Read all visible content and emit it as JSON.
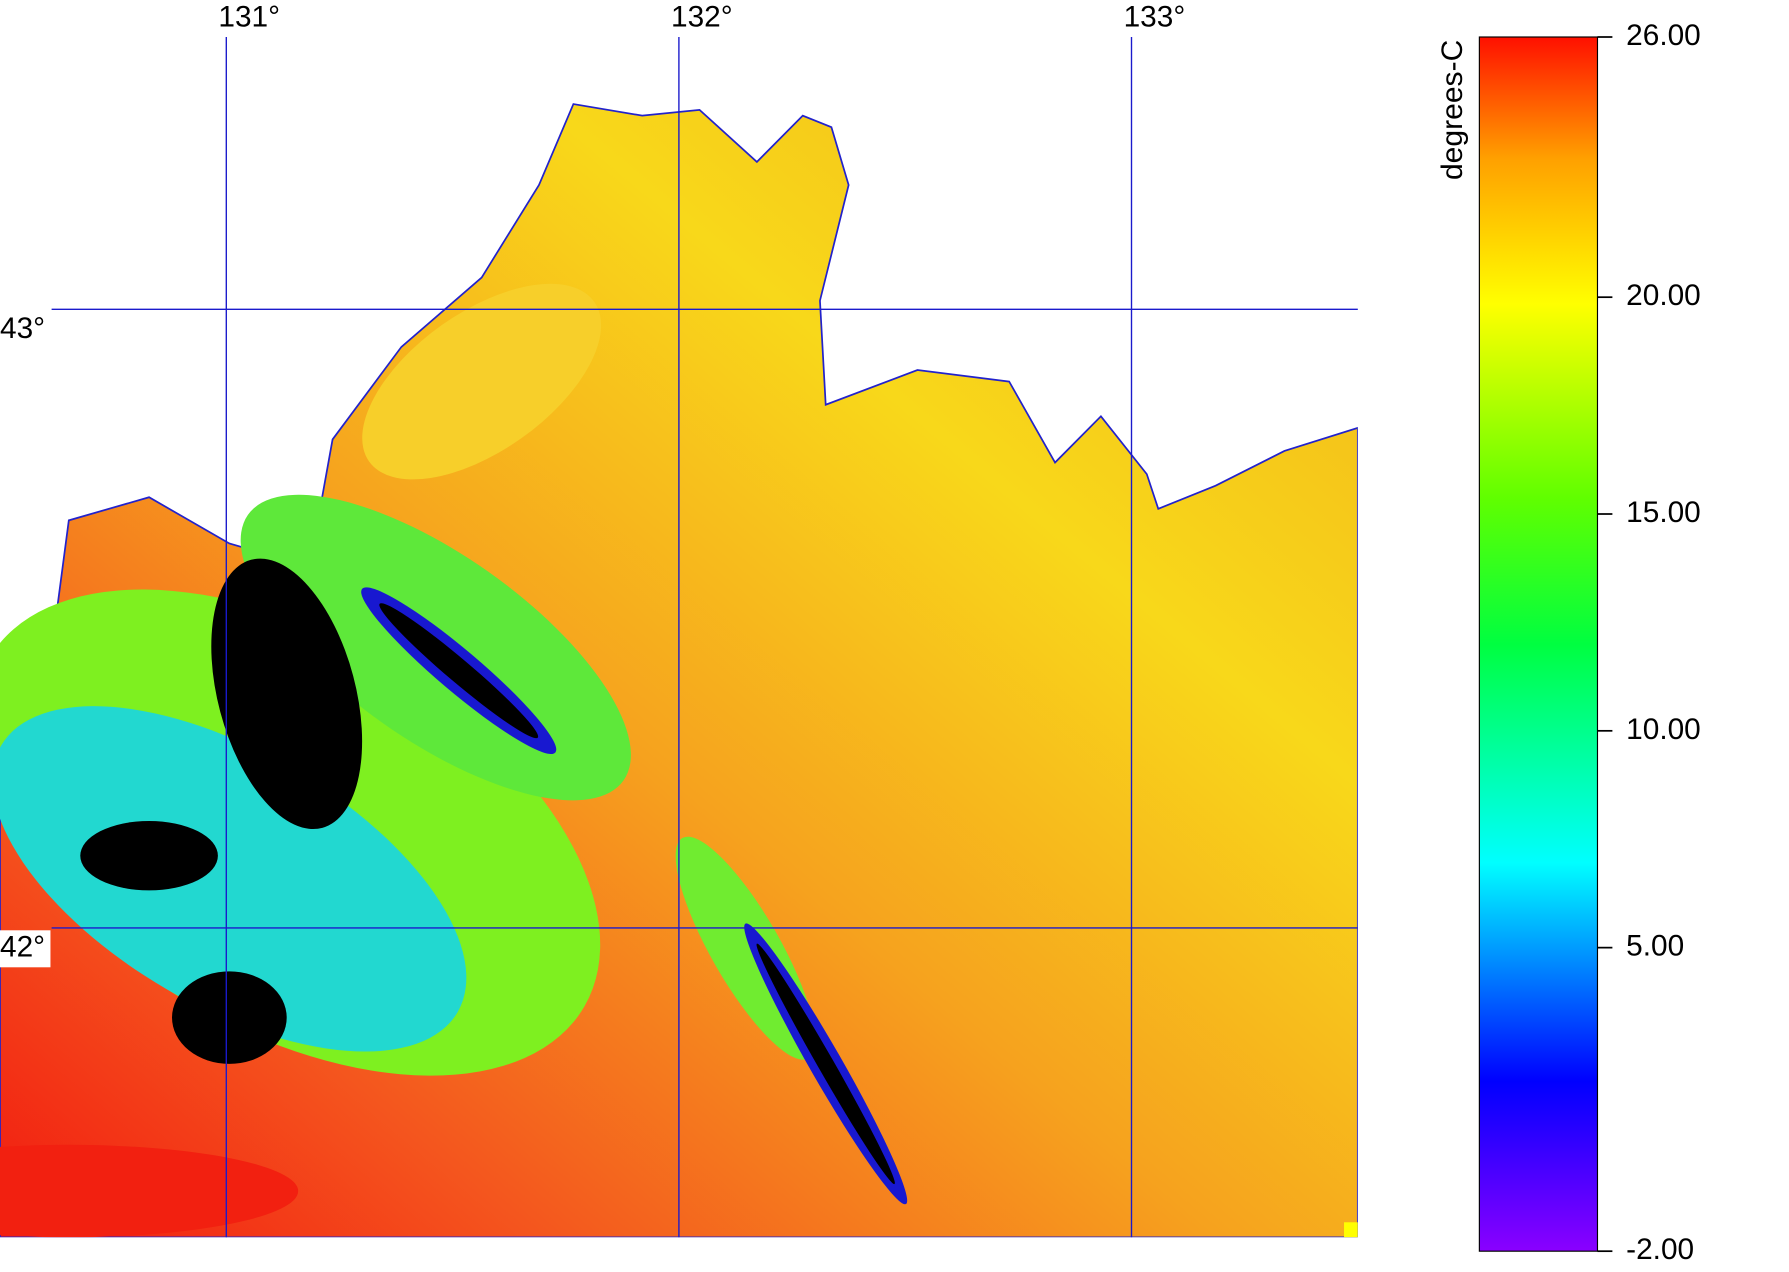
{
  "map": {
    "lon_range": [
      130.5,
      133.5
    ],
    "lat_range": [
      41.5,
      43.5
    ],
    "lon_ticks": [
      {
        "value": 131,
        "label": "131°"
      },
      {
        "value": 132,
        "label": "132°"
      },
      {
        "value": 133,
        "label": "133°"
      }
    ],
    "lat_ticks": [
      {
        "value": 43,
        "label": "43°"
      },
      {
        "value": 42,
        "label": "42°"
      }
    ],
    "grid_color": "#1a1acc"
  },
  "colorbar": {
    "label": "degrees-C",
    "range": [
      -2,
      26
    ],
    "ticks": [
      {
        "value": 26,
        "label": "26.00"
      },
      {
        "value": 20,
        "label": "20.00"
      },
      {
        "value": 15,
        "label": "15.00"
      },
      {
        "value": 10,
        "label": "10.00"
      },
      {
        "value": 5,
        "label": "5.00"
      },
      {
        "value": -2,
        "label": "-2.00"
      }
    ]
  }
}
